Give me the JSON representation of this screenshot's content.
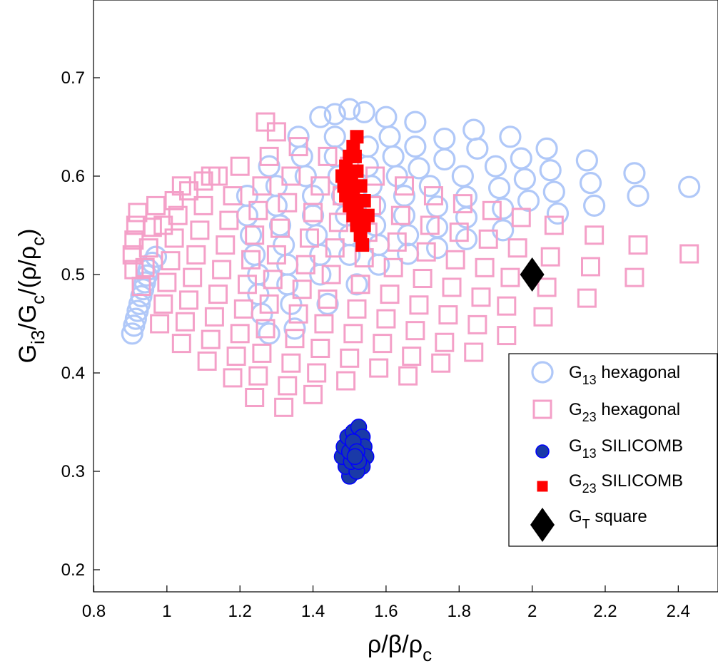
{
  "chart_data": {
    "type": "scatter",
    "xlim": [
      0.8,
      2.5
    ],
    "ylim": [
      0.15,
      0.75
    ],
    "xticks": [
      "0.8",
      "1",
      "1.2",
      "1.4",
      "1.6",
      "1.8",
      "2",
      "2.2",
      "2.4"
    ],
    "yticks": [
      "0.2",
      "0.3",
      "0.4",
      "0.5",
      "0.6",
      "0.7"
    ],
    "xlabel": {
      "main": "ρ/β/ρ",
      "sub": "c"
    },
    "ylabel": {
      "p1": "G",
      "s1": "i3",
      "p2": "/G",
      "s2": "c",
      "p3": "/(ρ/ρ",
      "s3": "c",
      "p4": ")"
    },
    "grid": false,
    "legend_position": "lower-right",
    "legend": [
      {
        "pre": "G",
        "sub": "13",
        "post": " hexagonal",
        "marker": "open-circle",
        "color": "#b0c8f8"
      },
      {
        "pre": "G",
        "sub": "23",
        "post": " hexagonal",
        "marker": "open-square",
        "color": "#f4a0c8"
      },
      {
        "pre": "G",
        "sub": "13",
        "post": " SILICOMB",
        "marker": "filled-circle",
        "color": "#1a3aa8"
      },
      {
        "pre": "G",
        "sub": "23",
        "post": " SILICOMB",
        "marker": "filled-square",
        "color": "#ff0000"
      },
      {
        "pre": "G",
        "sub": "T",
        "post": " square",
        "marker": "filled-diamond",
        "color": "#000000"
      }
    ],
    "series": [
      {
        "key": "g13_hexagonal",
        "marker": "open-circle",
        "color": "#b0c8f8",
        "points": [
          [
            2.43,
            0.589
          ],
          [
            2.29,
            0.58
          ],
          [
            2.28,
            0.603
          ],
          [
            2.17,
            0.57
          ],
          [
            2.16,
            0.593
          ],
          [
            2.15,
            0.616
          ],
          [
            2.07,
            0.562
          ],
          [
            2.06,
            0.584
          ],
          [
            2.05,
            0.606
          ],
          [
            2.04,
            0.628
          ],
          [
            1.99,
            0.575
          ],
          [
            1.98,
            0.597
          ],
          [
            1.97,
            0.618
          ],
          [
            1.94,
            0.64
          ],
          [
            1.92,
            0.545
          ],
          [
            1.92,
            0.567
          ],
          [
            1.91,
            0.588
          ],
          [
            1.9,
            0.61
          ],
          [
            1.85,
            0.628
          ],
          [
            1.84,
            0.647
          ],
          [
            1.82,
            0.536
          ],
          [
            1.82,
            0.558
          ],
          [
            1.82,
            0.579
          ],
          [
            1.81,
            0.6
          ],
          [
            1.76,
            0.617
          ],
          [
            1.76,
            0.638
          ],
          [
            1.74,
            0.527
          ],
          [
            1.74,
            0.548
          ],
          [
            1.74,
            0.569
          ],
          [
            1.72,
            0.59
          ],
          [
            1.69,
            0.608
          ],
          [
            1.68,
            0.63
          ],
          [
            1.68,
            0.655
          ],
          [
            1.66,
            0.521
          ],
          [
            1.66,
            0.54
          ],
          [
            1.65,
            0.56
          ],
          [
            1.65,
            0.58
          ],
          [
            1.63,
            0.6
          ],
          [
            1.62,
            0.62
          ],
          [
            1.61,
            0.64
          ],
          [
            1.6,
            0.66
          ],
          [
            1.58,
            0.51
          ],
          [
            1.58,
            0.53
          ],
          [
            1.57,
            0.55
          ],
          [
            1.57,
            0.57
          ],
          [
            1.56,
            0.59
          ],
          [
            1.55,
            0.61
          ],
          [
            1.55,
            0.63
          ],
          [
            1.54,
            0.665
          ],
          [
            1.52,
            0.49
          ],
          [
            1.5,
            0.52
          ],
          [
            1.5,
            0.54
          ],
          [
            1.49,
            0.56
          ],
          [
            1.48,
            0.58
          ],
          [
            1.47,
            0.6
          ],
          [
            1.46,
            0.62
          ],
          [
            1.46,
            0.64
          ],
          [
            1.5,
            0.668
          ],
          [
            1.46,
            0.663
          ],
          [
            1.42,
            0.66
          ],
          [
            1.44,
            0.47
          ],
          [
            1.42,
            0.5
          ],
          [
            1.42,
            0.52
          ],
          [
            1.41,
            0.54
          ],
          [
            1.4,
            0.56
          ],
          [
            1.4,
            0.58
          ],
          [
            1.38,
            0.6
          ],
          [
            1.37,
            0.62
          ],
          [
            1.36,
            0.64
          ],
          [
            1.35,
            0.445
          ],
          [
            1.34,
            0.47
          ],
          [
            1.33,
            0.49
          ],
          [
            1.33,
            0.51
          ],
          [
            1.32,
            0.53
          ],
          [
            1.31,
            0.55
          ],
          [
            1.3,
            0.57
          ],
          [
            1.3,
            0.59
          ],
          [
            1.28,
            0.61
          ],
          [
            1.28,
            0.44
          ],
          [
            1.26,
            0.46
          ],
          [
            1.25,
            0.48
          ],
          [
            1.25,
            0.5
          ],
          [
            1.24,
            0.52
          ],
          [
            1.23,
            0.54
          ],
          [
            1.22,
            0.56
          ],
          [
            1.22,
            0.58
          ],
          [
            0.905,
            0.44
          ],
          [
            0.91,
            0.448
          ],
          [
            0.915,
            0.455
          ],
          [
            0.92,
            0.463
          ],
          [
            0.925,
            0.47
          ],
          [
            0.93,
            0.478
          ],
          [
            0.935,
            0.485
          ],
          [
            0.94,
            0.492
          ],
          [
            0.945,
            0.499
          ],
          [
            0.95,
            0.505
          ],
          [
            0.96,
            0.512
          ],
          [
            0.97,
            0.518
          ]
        ]
      },
      {
        "key": "g23_hexagonal",
        "marker": "open-square",
        "color": "#f4a0c8",
        "points": [
          [
            2.43,
            0.521
          ],
          [
            2.29,
            0.53
          ],
          [
            2.28,
            0.497
          ],
          [
            2.17,
            0.54
          ],
          [
            2.16,
            0.508
          ],
          [
            2.15,
            0.476
          ],
          [
            2.06,
            0.55
          ],
          [
            2.05,
            0.518
          ],
          [
            2.04,
            0.487
          ],
          [
            2.03,
            0.457
          ],
          [
            1.97,
            0.558
          ],
          [
            1.96,
            0.527
          ],
          [
            1.94,
            0.497
          ],
          [
            1.93,
            0.468
          ],
          [
            1.93,
            0.438
          ],
          [
            1.89,
            0.565
          ],
          [
            1.88,
            0.536
          ],
          [
            1.87,
            0.507
          ],
          [
            1.86,
            0.477
          ],
          [
            1.85,
            0.449
          ],
          [
            1.84,
            0.421
          ],
          [
            1.81,
            0.572
          ],
          [
            1.8,
            0.543
          ],
          [
            1.79,
            0.515
          ],
          [
            1.78,
            0.487
          ],
          [
            1.77,
            0.459
          ],
          [
            1.76,
            0.431
          ],
          [
            1.75,
            0.41
          ],
          [
            1.73,
            0.58
          ],
          [
            1.72,
            0.55
          ],
          [
            1.71,
            0.523
          ],
          [
            1.7,
            0.496
          ],
          [
            1.69,
            0.469
          ],
          [
            1.68,
            0.443
          ],
          [
            1.67,
            0.417
          ],
          [
            1.66,
            0.397
          ],
          [
            1.65,
            0.59
          ],
          [
            1.64,
            0.56
          ],
          [
            1.63,
            0.533
          ],
          [
            1.62,
            0.507
          ],
          [
            1.61,
            0.48
          ],
          [
            1.6,
            0.455
          ],
          [
            1.59,
            0.43
          ],
          [
            1.58,
            0.405
          ],
          [
            1.57,
            0.6
          ],
          [
            1.56,
            0.57
          ],
          [
            1.55,
            0.543
          ],
          [
            1.54,
            0.517
          ],
          [
            1.53,
            0.49
          ],
          [
            1.52,
            0.465
          ],
          [
            1.51,
            0.44
          ],
          [
            1.5,
            0.415
          ],
          [
            1.49,
            0.392
          ],
          [
            1.5,
            0.61
          ],
          [
            1.48,
            0.58
          ],
          [
            1.47,
            0.553
          ],
          [
            1.46,
            0.527
          ],
          [
            1.45,
            0.5
          ],
          [
            1.44,
            0.475
          ],
          [
            1.43,
            0.45
          ],
          [
            1.42,
            0.425
          ],
          [
            1.41,
            0.4
          ],
          [
            1.4,
            0.378
          ],
          [
            1.44,
            0.62
          ],
          [
            1.42,
            0.59
          ],
          [
            1.4,
            0.563
          ],
          [
            1.39,
            0.537
          ],
          [
            1.38,
            0.51
          ],
          [
            1.37,
            0.485
          ],
          [
            1.36,
            0.46
          ],
          [
            1.35,
            0.435
          ],
          [
            1.34,
            0.41
          ],
          [
            1.33,
            0.387
          ],
          [
            1.32,
            0.365
          ],
          [
            1.36,
            0.63
          ],
          [
            1.34,
            0.6
          ],
          [
            1.33,
            0.573
          ],
          [
            1.31,
            0.547
          ],
          [
            1.3,
            0.52
          ],
          [
            1.29,
            0.495
          ],
          [
            1.28,
            0.47
          ],
          [
            1.27,
            0.445
          ],
          [
            1.26,
            0.42
          ],
          [
            1.25,
            0.397
          ],
          [
            1.24,
            0.375
          ],
          [
            1.27,
            0.655
          ],
          [
            1.3,
            0.645
          ],
          [
            1.28,
            0.62
          ],
          [
            1.26,
            0.59
          ],
          [
            1.25,
            0.565
          ],
          [
            1.24,
            0.54
          ],
          [
            1.23,
            0.515
          ],
          [
            1.22,
            0.49
          ],
          [
            1.21,
            0.465
          ],
          [
            1.2,
            0.44
          ],
          [
            1.19,
            0.417
          ],
          [
            1.18,
            0.395
          ],
          [
            1.2,
            0.61
          ],
          [
            1.18,
            0.58
          ],
          [
            1.17,
            0.555
          ],
          [
            1.16,
            0.53
          ],
          [
            1.15,
            0.505
          ],
          [
            1.14,
            0.48
          ],
          [
            1.13,
            0.457
          ],
          [
            1.12,
            0.434
          ],
          [
            1.11,
            0.412
          ],
          [
            1.12,
            0.6
          ],
          [
            1.1,
            0.57
          ],
          [
            1.09,
            0.545
          ],
          [
            1.08,
            0.52
          ],
          [
            1.07,
            0.497
          ],
          [
            1.06,
            0.474
          ],
          [
            1.05,
            0.452
          ],
          [
            1.04,
            0.43
          ],
          [
            1.04,
            0.59
          ],
          [
            1.03,
            0.56
          ],
          [
            1.02,
            0.537
          ],
          [
            1.01,
            0.514
          ],
          [
            1.0,
            0.492
          ],
          [
            0.99,
            0.47
          ],
          [
            0.98,
            0.45
          ],
          [
            0.97,
            0.57
          ],
          [
            0.96,
            0.548
          ],
          [
            0.95,
            0.527
          ],
          [
            0.94,
            0.507
          ],
          [
            0.93,
            0.488
          ],
          [
            0.92,
            0.563
          ],
          [
            0.915,
            0.55
          ],
          [
            0.91,
            0.535
          ],
          [
            0.905,
            0.52
          ],
          [
            0.91,
            0.505
          ],
          [
            0.99,
            0.55
          ],
          [
            1.02,
            0.575
          ],
          [
            1.06,
            0.585
          ],
          [
            1.1,
            0.595
          ],
          [
            1.14,
            0.6
          ]
        ]
      },
      {
        "key": "g13_silicomb",
        "marker": "filled-circle",
        "color": "#1a3aa8",
        "points": [
          [
            1.5,
            0.295
          ],
          [
            1.49,
            0.305
          ],
          [
            1.48,
            0.315
          ],
          [
            1.485,
            0.325
          ],
          [
            1.495,
            0.335
          ],
          [
            1.51,
            0.34
          ],
          [
            1.525,
            0.345
          ],
          [
            1.535,
            0.335
          ],
          [
            1.54,
            0.325
          ],
          [
            1.545,
            0.315
          ],
          [
            1.535,
            0.305
          ],
          [
            1.52,
            0.3
          ],
          [
            1.505,
            0.31
          ],
          [
            1.5,
            0.32
          ],
          [
            1.51,
            0.33
          ],
          [
            1.52,
            0.32
          ],
          [
            1.525,
            0.31
          ],
          [
            1.515,
            0.315
          ]
        ]
      },
      {
        "key": "g23_silicomb",
        "marker": "filled-square",
        "color": "#ff0000",
        "points": [
          [
            1.52,
            0.64
          ],
          [
            1.51,
            0.63
          ],
          [
            1.5,
            0.62
          ],
          [
            1.49,
            0.61
          ],
          [
            1.48,
            0.6
          ],
          [
            1.485,
            0.59
          ],
          [
            1.49,
            0.58
          ],
          [
            1.5,
            0.57
          ],
          [
            1.51,
            0.56
          ],
          [
            1.52,
            0.55
          ],
          [
            1.53,
            0.54
          ],
          [
            1.535,
            0.53
          ],
          [
            1.54,
            0.55
          ],
          [
            1.55,
            0.56
          ],
          [
            1.54,
            0.575
          ],
          [
            1.53,
            0.59
          ],
          [
            1.52,
            0.605
          ],
          [
            1.515,
            0.62
          ],
          [
            1.505,
            0.6
          ],
          [
            1.5,
            0.59
          ],
          [
            1.51,
            0.58
          ],
          [
            1.52,
            0.57
          ],
          [
            1.525,
            0.56
          ]
        ]
      },
      {
        "key": "gt_square",
        "marker": "filled-diamond",
        "color": "#000000",
        "points": [
          [
            2.0,
            0.5
          ]
        ]
      }
    ]
  }
}
